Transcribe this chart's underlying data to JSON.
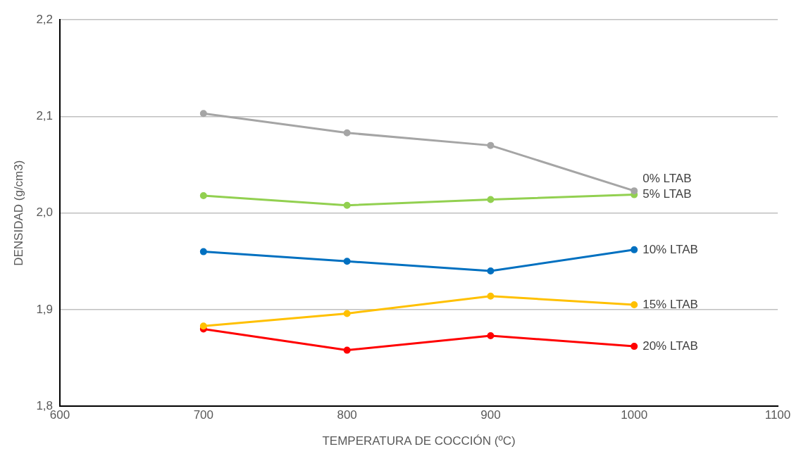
{
  "chart_data": {
    "type": "line",
    "xlabel": "TEMPERATURA DE COCCIÓN (ºC)",
    "ylabel": "DENSIDAD (g/cm3)",
    "x": [
      700,
      800,
      900,
      1000
    ],
    "series": [
      {
        "name": "0% LTAB",
        "color": "#a5a5a5",
        "values": [
          2.103,
          2.083,
          2.07,
          2.023
        ]
      },
      {
        "name": "5% LTAB",
        "color": "#92d050",
        "values": [
          2.018,
          2.008,
          2.014,
          2.019
        ]
      },
      {
        "name": "10% LTAB",
        "color": "#0070c0",
        "values": [
          1.96,
          1.95,
          1.94,
          1.962
        ]
      },
      {
        "name": "15% LTAB",
        "color": "#ffc000",
        "values": [
          1.883,
          1.896,
          1.914,
          1.905
        ]
      },
      {
        "name": "20% LTAB",
        "color": "#ff0000",
        "values": [
          1.88,
          1.858,
          1.873,
          1.862
        ]
      }
    ],
    "xlim": [
      600,
      1100
    ],
    "xticks": [
      600,
      700,
      800,
      900,
      1000,
      1100
    ],
    "ylim": [
      1.8,
      2.2
    ],
    "yticks": [
      {
        "value": 1.8,
        "label": "1,8"
      },
      {
        "value": 1.9,
        "label": "1,9"
      },
      {
        "value": 2.0,
        "label": "2,0"
      },
      {
        "value": 2.1,
        "label": "2,1"
      },
      {
        "value": 2.2,
        "label": "2,2"
      }
    ],
    "grid": "y",
    "legend": false,
    "marker": "circle",
    "line_style": "solid"
  }
}
